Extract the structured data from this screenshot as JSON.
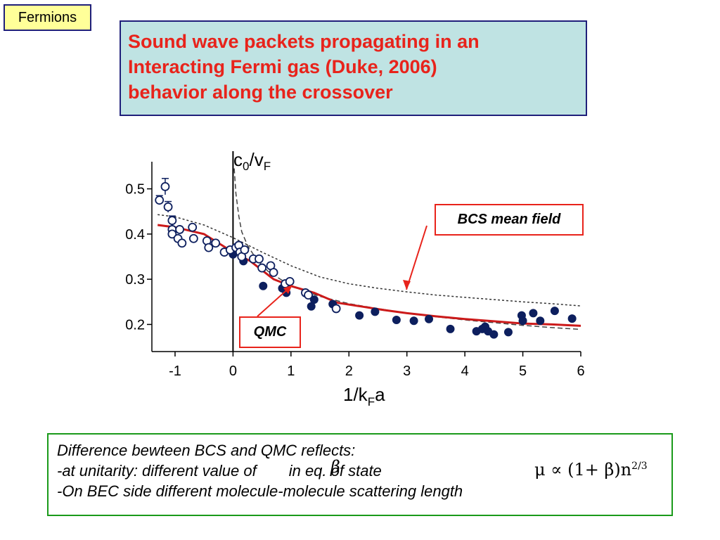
{
  "tag": "Fermions",
  "title": {
    "lines": [
      "Sound wave packets propagating in an",
      "Interacting Fermi gas (Duke, 2006)",
      "behavior along the crossover"
    ]
  },
  "callouts": {
    "bcs": "BCS mean field",
    "qmc": "QMC"
  },
  "note": {
    "line1": "Difference bewteen BCS and QMC reflects:",
    "line2": "-at unitarity: different value of",
    "line2b": "in eq. of state",
    "line3": "-On BEC side different molecule-molecule scattering length",
    "beta": "β",
    "formula": "μ ∝ (1+ β)n",
    "formula_exp": "2/3"
  },
  "colors": {
    "title": "#e8231b",
    "data_dark": "#0d1f5e",
    "qmc_line": "#cc1a1a"
  },
  "chart_data": {
    "type": "scatter",
    "ylabel": "c0/vF",
    "xlabel": "1/kFa",
    "xlim": [
      -1.4,
      6
    ],
    "ylim": [
      0.14,
      0.56
    ],
    "xticks": [
      "-1",
      "0",
      "1",
      "2",
      "3",
      "4",
      "5",
      "6"
    ],
    "yticks": [
      "0.5",
      "0.4",
      "0.3",
      "0.2"
    ],
    "open_points": [
      [
        -1.27,
        0.475
      ],
      [
        -1.17,
        0.505
      ],
      [
        -1.12,
        0.46
      ],
      [
        -1.05,
        0.43
      ],
      [
        -1.05,
        0.41
      ],
      [
        -1.05,
        0.4
      ],
      [
        -0.95,
        0.39
      ],
      [
        -0.92,
        0.41
      ],
      [
        -0.88,
        0.38
      ],
      [
        -0.7,
        0.415
      ],
      [
        -0.68,
        0.39
      ],
      [
        -0.45,
        0.385
      ],
      [
        -0.42,
        0.37
      ],
      [
        -0.3,
        0.38
      ],
      [
        -0.15,
        0.36
      ],
      [
        -0.05,
        0.365
      ],
      [
        0.05,
        0.37
      ],
      [
        0.1,
        0.375
      ],
      [
        0.12,
        0.36
      ],
      [
        0.15,
        0.35
      ],
      [
        0.2,
        0.365
      ],
      [
        0.35,
        0.345
      ],
      [
        0.45,
        0.345
      ],
      [
        0.5,
        0.325
      ],
      [
        0.65,
        0.33
      ],
      [
        0.7,
        0.315
      ],
      [
        0.9,
        0.29
      ],
      [
        0.98,
        0.295
      ],
      [
        1.25,
        0.27
      ],
      [
        1.3,
        0.265
      ],
      [
        1.78,
        0.235
      ]
    ],
    "filled_points": [
      [
        0.0,
        0.355
      ],
      [
        0.18,
        0.34
      ],
      [
        0.52,
        0.285
      ],
      [
        0.85,
        0.28
      ],
      [
        0.92,
        0.27
      ],
      [
        1.35,
        0.24
      ],
      [
        1.4,
        0.255
      ],
      [
        1.72,
        0.245
      ],
      [
        2.18,
        0.22
      ],
      [
        2.45,
        0.228
      ],
      [
        2.82,
        0.21
      ],
      [
        3.12,
        0.208
      ],
      [
        3.38,
        0.212
      ],
      [
        3.75,
        0.19
      ],
      [
        4.2,
        0.185
      ],
      [
        4.3,
        0.19
      ],
      [
        4.35,
        0.195
      ],
      [
        4.4,
        0.185
      ],
      [
        4.5,
        0.178
      ],
      [
        4.75,
        0.183
      ],
      [
        4.98,
        0.22
      ],
      [
        5.0,
        0.208
      ],
      [
        5.18,
        0.225
      ],
      [
        5.3,
        0.208
      ],
      [
        5.55,
        0.23
      ],
      [
        5.85,
        0.213
      ]
    ],
    "bcs_curve": [
      [
        -1.3,
        0.443
      ],
      [
        -1.0,
        0.438
      ],
      [
        -0.5,
        0.42
      ],
      [
        0.0,
        0.392
      ],
      [
        0.5,
        0.36
      ],
      [
        1.0,
        0.33
      ],
      [
        1.5,
        0.305
      ],
      [
        2.0,
        0.29
      ],
      [
        2.5,
        0.28
      ],
      [
        3.0,
        0.272
      ],
      [
        3.5,
        0.265
      ],
      [
        4.0,
        0.26
      ],
      [
        4.5,
        0.255
      ],
      [
        5.0,
        0.25
      ],
      [
        5.5,
        0.246
      ],
      [
        6.0,
        0.241
      ]
    ],
    "qmc_curve": [
      [
        -1.3,
        0.42
      ],
      [
        -1.0,
        0.415
      ],
      [
        -0.5,
        0.4
      ],
      [
        0.0,
        0.36
      ],
      [
        0.3,
        0.34
      ],
      [
        0.7,
        0.3
      ],
      [
        1.0,
        0.285
      ],
      [
        1.4,
        0.27
      ],
      [
        1.8,
        0.248
      ],
      [
        2.2,
        0.24
      ],
      [
        2.6,
        0.232
      ],
      [
        3.0,
        0.225
      ],
      [
        3.5,
        0.218
      ],
      [
        4.0,
        0.212
      ],
      [
        4.5,
        0.207
      ],
      [
        5.0,
        0.202
      ],
      [
        5.5,
        0.2
      ],
      [
        6.0,
        0.197
      ]
    ],
    "dashed_curve": [
      [
        0.02,
        0.545
      ],
      [
        0.05,
        0.49
      ],
      [
        0.1,
        0.44
      ],
      [
        0.15,
        0.405
      ],
      [
        0.25,
        0.375
      ],
      [
        0.4,
        0.345
      ],
      [
        0.6,
        0.318
      ],
      [
        1.0,
        0.285
      ],
      [
        1.5,
        0.262
      ],
      [
        2.0,
        0.246
      ],
      [
        2.5,
        0.235
      ],
      [
        3.0,
        0.225
      ],
      [
        3.5,
        0.217
      ],
      [
        4.0,
        0.21
      ],
      [
        4.5,
        0.204
      ],
      [
        5.0,
        0.198
      ],
      [
        5.5,
        0.193
      ],
      [
        6.0,
        0.189
      ]
    ],
    "error_bars": [
      {
        "x": -1.17,
        "y": 0.505,
        "dy": 0.018
      },
      {
        "x": -1.12,
        "y": 0.46,
        "dy": 0.012
      },
      {
        "x": -1.27,
        "y": 0.475,
        "dy": 0.01
      },
      {
        "x": -1.05,
        "y": 0.43,
        "dy": 0.01
      }
    ]
  }
}
